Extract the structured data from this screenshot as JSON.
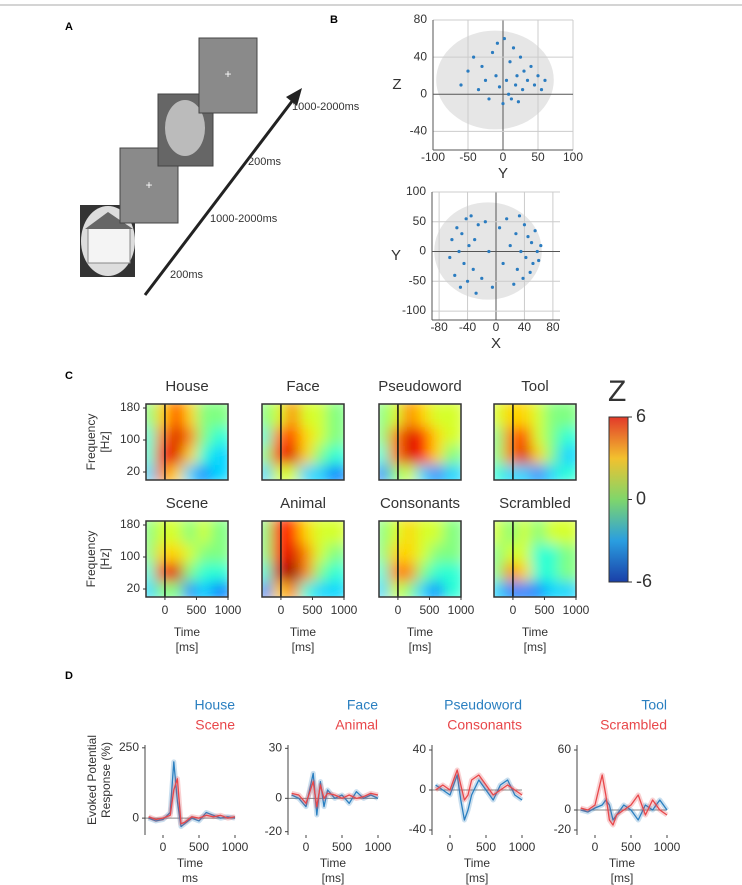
{
  "panel_labels": [
    "A",
    "B",
    "C",
    "D"
  ],
  "panel_a": {
    "stimulus_durations": [
      "200ms",
      "1000-2000ms",
      "200ms",
      "1000-2000ms"
    ]
  },
  "heatmap_axes": {
    "xlim": [
      -300,
      1000
    ],
    "xticks": [
      0,
      500,
      1000
    ],
    "ylim": [
      0,
      190
    ],
    "yticks": [
      20,
      100,
      180
    ],
    "xlabel": [
      "Time",
      "[ms]"
    ],
    "ylabel": [
      "Frequency",
      "[Hz]"
    ],
    "zlim": [
      -6,
      6
    ],
    "zticks": [
      -6,
      0,
      6
    ],
    "zlabel": "Z"
  },
  "chart_data": [
    {
      "type": "scatter",
      "xlabel": "Y",
      "ylabel": "Z",
      "xlim": [
        -100,
        100
      ],
      "xticks": [
        -100,
        -50,
        0,
        50,
        100
      ],
      "ylim": [
        -60,
        80
      ],
      "yticks": [
        -40,
        0,
        40,
        80
      ],
      "grid": true,
      "color": "#2b7cc0",
      "x": [
        -60,
        -50,
        -42,
        -35,
        -30,
        -25,
        -20,
        -15,
        -10,
        -8,
        -5,
        0,
        2,
        5,
        8,
        10,
        12,
        15,
        18,
        20,
        22,
        25,
        28,
        30,
        35,
        40,
        45,
        50,
        55,
        60
      ],
      "y": [
        10,
        25,
        40,
        5,
        30,
        15,
        -5,
        45,
        20,
        55,
        8,
        -10,
        60,
        15,
        0,
        35,
        -5,
        50,
        10,
        20,
        -8,
        40,
        5,
        25,
        15,
        30,
        10,
        20,
        5,
        15
      ]
    },
    {
      "type": "scatter",
      "xlabel": "X",
      "ylabel": "Y",
      "xlim": [
        -90,
        90
      ],
      "xticks": [
        -80,
        -40,
        0,
        40,
        80
      ],
      "ylim": [
        -115,
        100
      ],
      "yticks": [
        -100,
        -50,
        0,
        50,
        100
      ],
      "grid": true,
      "color": "#2b7cc0",
      "x": [
        -65,
        -62,
        -58,
        -55,
        -52,
        -50,
        -48,
        -45,
        -42,
        -40,
        -38,
        -35,
        -32,
        -30,
        -28,
        -25,
        -20,
        -15,
        -10,
        -5,
        5,
        10,
        15,
        20,
        25,
        28,
        30,
        33,
        35,
        38,
        40,
        42,
        45,
        48,
        50,
        52,
        55,
        58,
        60,
        63
      ],
      "y": [
        -10,
        20,
        -40,
        40,
        0,
        -60,
        30,
        -20,
        55,
        -50,
        10,
        60,
        -30,
        20,
        -70,
        45,
        -45,
        50,
        0,
        -60,
        40,
        -20,
        55,
        10,
        -55,
        30,
        -30,
        60,
        0,
        -45,
        45,
        -10,
        25,
        -35,
        15,
        -20,
        35,
        0,
        -15,
        10
      ]
    },
    {
      "type": "heatmap",
      "title": "House",
      "values": [
        [
          -2,
          3,
          2,
          -2,
          -3,
          -2
        ],
        [
          -1,
          4,
          5,
          2,
          -1,
          -2
        ],
        [
          -1,
          3,
          5,
          3,
          0,
          -1
        ],
        [
          0,
          2,
          4,
          2,
          0,
          0
        ]
      ]
    },
    {
      "type": "heatmap",
      "title": "Face",
      "values": [
        [
          -2,
          1,
          1,
          -2,
          -2,
          -3
        ],
        [
          0,
          4,
          5,
          2,
          0,
          -1
        ],
        [
          -1,
          3,
          4,
          2,
          1,
          0
        ],
        [
          0,
          1,
          3,
          1,
          1,
          0
        ]
      ]
    },
    {
      "type": "heatmap",
      "title": "Pseudoword",
      "values": [
        [
          -3,
          0,
          1,
          -2,
          -3,
          -2
        ],
        [
          -1,
          3,
          5,
          4,
          2,
          0
        ],
        [
          0,
          3,
          5,
          4,
          2,
          1
        ],
        [
          0,
          1,
          3,
          2,
          1,
          1
        ]
      ]
    },
    {
      "type": "heatmap",
      "title": "Tool",
      "values": [
        [
          -1,
          -2,
          -2,
          -3,
          -2,
          -1
        ],
        [
          0,
          3,
          5,
          2,
          0,
          -2
        ],
        [
          0,
          3,
          4,
          1,
          0,
          -1
        ],
        [
          1,
          2,
          2,
          1,
          0,
          0
        ]
      ]
    },
    {
      "type": "heatmap",
      "title": "Scene",
      "values": [
        [
          -2,
          0,
          0,
          -3,
          -2,
          -3
        ],
        [
          -1,
          4,
          5,
          0,
          -1,
          -1
        ],
        [
          0,
          2,
          2,
          1,
          0,
          0
        ],
        [
          0,
          1,
          1,
          0,
          1,
          0
        ]
      ]
    },
    {
      "type": "heatmap",
      "title": "Animal",
      "values": [
        [
          -3,
          2,
          3,
          -1,
          -2,
          -2
        ],
        [
          -1,
          5,
          6,
          3,
          0,
          -1
        ],
        [
          0,
          4,
          5,
          3,
          1,
          0
        ],
        [
          0,
          4,
          4,
          2,
          1,
          1
        ]
      ]
    },
    {
      "type": "heatmap",
      "title": "Consonants",
      "values": [
        [
          -2,
          1,
          0,
          -2,
          -3,
          -1
        ],
        [
          -1,
          3,
          3,
          0,
          -1,
          -1
        ],
        [
          0,
          2,
          2,
          1,
          0,
          0
        ],
        [
          0,
          1,
          2,
          1,
          1,
          0
        ]
      ]
    },
    {
      "type": "heatmap",
      "title": "Scrambled",
      "values": [
        [
          -2,
          -3,
          -3,
          -3,
          -2,
          -2
        ],
        [
          0,
          3,
          2,
          -1,
          -1,
          0
        ],
        [
          0,
          1,
          1,
          -1,
          -1,
          0
        ],
        [
          1,
          0,
          1,
          0,
          1,
          1
        ]
      ]
    },
    {
      "type": "line",
      "ylabel": [
        "Evoked Potential",
        "Response (%)"
      ],
      "xlabel": [
        "Time",
        "ms"
      ],
      "xlim": [
        -250,
        1000
      ],
      "xticks": [
        0,
        500,
        1000
      ],
      "ylim": [
        -60,
        260
      ],
      "yticks": [
        0,
        250
      ],
      "x": [
        -200,
        -100,
        0,
        100,
        150,
        200,
        250,
        300,
        400,
        500,
        600,
        700,
        800,
        900,
        1000
      ],
      "series": [
        {
          "name": "House",
          "color": "#2a7fc0",
          "values": [
            0,
            -10,
            -5,
            20,
            200,
            60,
            -30,
            -20,
            0,
            -10,
            20,
            10,
            0,
            5,
            0
          ]
        },
        {
          "name": "Scene",
          "color": "#e8474a",
          "values": [
            5,
            -5,
            0,
            10,
            100,
            140,
            -20,
            -15,
            5,
            0,
            10,
            5,
            10,
            0,
            5
          ]
        }
      ]
    },
    {
      "type": "line",
      "xlabel": [
        "Time",
        "[ms]"
      ],
      "xlim": [
        -250,
        1000
      ],
      "xticks": [
        0,
        500,
        1000
      ],
      "ylim": [
        -22,
        32
      ],
      "yticks": [
        -20,
        0,
        30
      ],
      "x": [
        -200,
        -100,
        0,
        100,
        150,
        200,
        250,
        300,
        400,
        500,
        600,
        700,
        800,
        900,
        1000
      ],
      "series": [
        {
          "name": "Face",
          "color": "#2a7fc0",
          "values": [
            2,
            0,
            -5,
            15,
            -10,
            10,
            -5,
            5,
            0,
            2,
            -3,
            4,
            0,
            2,
            0
          ]
        },
        {
          "name": "Animal",
          "color": "#e8474a",
          "values": [
            3,
            2,
            -3,
            10,
            -5,
            8,
            0,
            3,
            2,
            0,
            2,
            0,
            1,
            3,
            2
          ]
        }
      ]
    },
    {
      "type": "line",
      "xlabel": [
        "Time",
        "[ms]"
      ],
      "xlim": [
        -250,
        1000
      ],
      "xticks": [
        0,
        500,
        1000
      ],
      "ylim": [
        -45,
        45
      ],
      "yticks": [
        -40,
        0,
        40
      ],
      "x": [
        -200,
        -100,
        0,
        100,
        150,
        200,
        250,
        300,
        400,
        500,
        600,
        700,
        800,
        900,
        1000
      ],
      "series": [
        {
          "name": "Pseudoword",
          "color": "#2a7fc0",
          "values": [
            5,
            0,
            -5,
            15,
            -10,
            -30,
            -20,
            -5,
            10,
            0,
            -10,
            5,
            10,
            -5,
            -10
          ]
        },
        {
          "name": "Consonants",
          "color": "#e8474a",
          "values": [
            0,
            5,
            0,
            20,
            5,
            -10,
            -5,
            10,
            15,
            5,
            -5,
            0,
            5,
            0,
            -5
          ]
        }
      ]
    },
    {
      "type": "line",
      "xlabel": [
        "Time",
        "[ms]"
      ],
      "xlim": [
        -250,
        1000
      ],
      "xticks": [
        0,
        500,
        1000
      ],
      "ylim": [
        -25,
        65
      ],
      "yticks": [
        -20,
        0,
        60
      ],
      "x": [
        -200,
        -100,
        0,
        100,
        150,
        200,
        250,
        300,
        400,
        500,
        600,
        700,
        800,
        900,
        1000
      ],
      "series": [
        {
          "name": "Tool",
          "color": "#2a7fc0",
          "values": [
            0,
            -2,
            2,
            5,
            10,
            5,
            -10,
            -5,
            5,
            0,
            -10,
            5,
            0,
            10,
            0
          ]
        },
        {
          "name": "Scrambled",
          "color": "#e8474a",
          "values": [
            2,
            0,
            5,
            35,
            15,
            -10,
            -15,
            -5,
            0,
            5,
            15,
            -5,
            10,
            0,
            -5
          ]
        }
      ]
    }
  ]
}
